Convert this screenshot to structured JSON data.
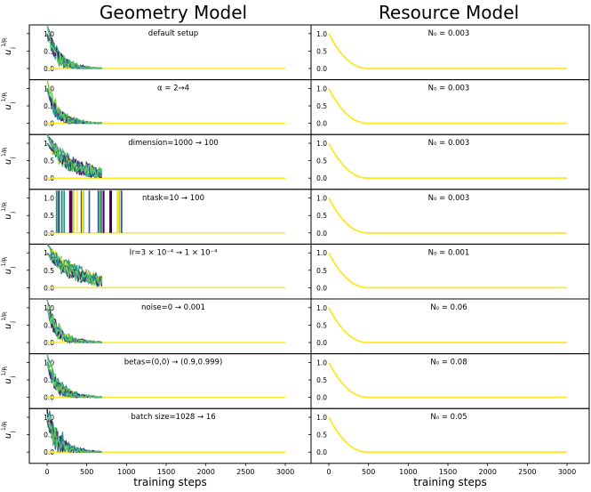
{
  "figure": {
    "col_titles": [
      "Geometry Model",
      "Resource Model"
    ],
    "xlabel": "training steps",
    "ylabel_main": "u",
    "ylabel_sub": "j",
    "ylabel_sup": "1/p",
    "ylabel_sup_sub": "i",
    "xticks": [
      0,
      500,
      1000,
      1500,
      2000,
      2500,
      3000
    ],
    "yticks": [
      "0.0",
      "0.5",
      "1.0"
    ]
  },
  "palette": [
    "#440154",
    "#3b528b",
    "#21918c",
    "#5ec962",
    "#fde725"
  ],
  "chart_data": [
    {
      "type": "line",
      "panel": "geometry",
      "row": 0,
      "title": "default setup",
      "ylim": [
        0,
        1.2
      ],
      "xlim": [
        0,
        3000
      ]
    },
    {
      "type": "line",
      "panel": "resource",
      "row": 0,
      "title": "N₀ = 0.003",
      "N0": 0.003,
      "ylim": [
        0,
        1.2
      ],
      "xlim": [
        0,
        3000
      ]
    },
    {
      "type": "line",
      "panel": "geometry",
      "row": 1,
      "title": "α = 2→4",
      "ylim": [
        0,
        1.2
      ],
      "xlim": [
        0,
        3000
      ]
    },
    {
      "type": "line",
      "panel": "resource",
      "row": 1,
      "title": "N₀ = 0.003",
      "N0": 0.003,
      "ylim": [
        0,
        1.2
      ],
      "xlim": [
        0,
        3000
      ]
    },
    {
      "type": "line",
      "panel": "geometry",
      "row": 2,
      "title": "dimension=1000 → 100",
      "ylim": [
        0,
        1.2
      ],
      "xlim": [
        0,
        3000
      ]
    },
    {
      "type": "line",
      "panel": "resource",
      "row": 2,
      "title": "N₀ = 0.003",
      "N0": 0.003,
      "ylim": [
        0,
        1.2
      ],
      "xlim": [
        0,
        3000
      ]
    },
    {
      "type": "line",
      "panel": "geometry",
      "row": 3,
      "title": "ntask=10 → 100",
      "ylim": [
        0,
        1.2
      ],
      "xlim": [
        0,
        3000
      ]
    },
    {
      "type": "line",
      "panel": "resource",
      "row": 3,
      "title": "N₀ = 0.003",
      "N0": 0.003,
      "ylim": [
        0,
        1.2
      ],
      "xlim": [
        0,
        3000
      ]
    },
    {
      "type": "line",
      "panel": "geometry",
      "row": 4,
      "title": "lr=3 × 10⁻⁴ → 1 × 10⁻⁴",
      "ylim": [
        0,
        1.2
      ],
      "xlim": [
        0,
        3000
      ]
    },
    {
      "type": "line",
      "panel": "resource",
      "row": 4,
      "title": "N₀ = 0.001",
      "N0": 0.001,
      "ylim": [
        0,
        1.2
      ],
      "xlim": [
        0,
        3000
      ]
    },
    {
      "type": "line",
      "panel": "geometry",
      "row": 5,
      "title": "noise=0 → 0.001",
      "ylim": [
        0,
        1.2
      ],
      "xlim": [
        0,
        3000
      ]
    },
    {
      "type": "line",
      "panel": "resource",
      "row": 5,
      "title": "N₀ = 0.06",
      "N0": 0.06,
      "ylim": [
        0,
        1.2
      ],
      "xlim": [
        0,
        3000
      ]
    },
    {
      "type": "line",
      "panel": "geometry",
      "row": 6,
      "title": "betas=(0,0) → (0.9,0.999)",
      "ylim": [
        0,
        1.2
      ],
      "xlim": [
        0,
        3000
      ]
    },
    {
      "type": "line",
      "panel": "resource",
      "row": 6,
      "title": "N₀ = 0.08",
      "N0": 0.08,
      "ylim": [
        0,
        1.2
      ],
      "xlim": [
        0,
        3000
      ]
    },
    {
      "type": "line",
      "panel": "geometry",
      "row": 7,
      "title": "batch size=1028 → 16",
      "ylim": [
        0,
        1.2
      ],
      "xlim": [
        0,
        3000
      ]
    },
    {
      "type": "line",
      "panel": "resource",
      "row": 7,
      "title": "N₀ = 0.05",
      "N0": 0.05,
      "ylim": [
        0,
        1.2
      ],
      "xlim": [
        0,
        3000
      ]
    }
  ]
}
